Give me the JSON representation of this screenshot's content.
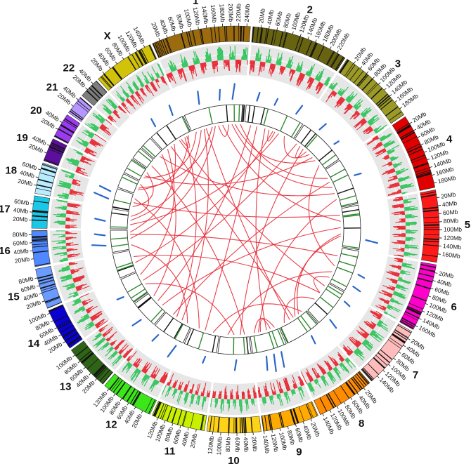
{
  "colors": {
    "ideogram": {
      "1": "#9b6b0e",
      "2": "#686310",
      "3": "#9c9a26",
      "4": "#e00000",
      "5": "#ff1a1a",
      "6": "#ff00cc",
      "7": "#ffbcbc",
      "8": "#ff8c00",
      "9": "#ffaa00",
      "10": "#ffd21a",
      "11": "#c8f000",
      "12": "#3ce61a",
      "13": "#2f6418",
      "14": "#0a00d0",
      "15": "#6a9bff",
      "16": "#4f88ff",
      "17": "#18c8e6",
      "18": "#b8ecff",
      "19": "#5c0f9c",
      "20": "#9a3bf0",
      "21": "#b696ff",
      "22": "#7d7d7d",
      "X": "#d2c20a"
    },
    "gain_track": "#2fc45a",
    "loss_track": "#e8242f",
    "track_background": "#e6e6e6",
    "lines_track": "#2a67c9",
    "heat_mark": "#2e8a2e",
    "links": "#e62a36"
  },
  "chromosomes": [
    {
      "label": "1",
      "size_mb": 249,
      "ticks": [
        "20Mb",
        "40Mb",
        "60Mb",
        "80Mb",
        "100Mb",
        "120Mb",
        "140Mb",
        "160Mb",
        "180Mb",
        "200Mb",
        "220Mb",
        "240Mb"
      ]
    },
    {
      "label": "2",
      "size_mb": 243,
      "ticks": [
        "20Mb",
        "40Mb",
        "60Mb",
        "80Mb",
        "100Mb",
        "120Mb",
        "140Mb",
        "160Mb",
        "180Mb",
        "200Mb",
        "220Mb"
      ]
    },
    {
      "label": "3",
      "size_mb": 198,
      "ticks": [
        "20Mb",
        "40Mb",
        "60Mb",
        "80Mb",
        "100Mb",
        "120Mb",
        "140Mb",
        "160Mb",
        "180Mb"
      ]
    },
    {
      "label": "4",
      "size_mb": 191,
      "ticks": [
        "20Mb",
        "40Mb",
        "60Mb",
        "80Mb",
        "100Mb",
        "120Mb",
        "140Mb",
        "160Mb",
        "180Mb"
      ]
    },
    {
      "label": "5",
      "size_mb": 181,
      "ticks": [
        "20Mb",
        "40Mb",
        "60Mb",
        "80Mb",
        "100Mb",
        "120Mb",
        "140Mb",
        "160Mb"
      ]
    },
    {
      "label": "6",
      "size_mb": 171,
      "ticks": [
        "20Mb",
        "40Mb",
        "60Mb",
        "80Mb",
        "100Mb",
        "120Mb",
        "140Mb",
        "160Mb"
      ]
    },
    {
      "label": "7",
      "size_mb": 159,
      "ticks": [
        "20Mb",
        "40Mb",
        "60Mb",
        "80Mb",
        "100Mb",
        "120Mb",
        "140Mb"
      ]
    },
    {
      "label": "8",
      "size_mb": 146,
      "ticks": [
        "20Mb",
        "40Mb",
        "60Mb",
        "80Mb",
        "100Mb",
        "120Mb",
        "140Mb"
      ]
    },
    {
      "label": "9",
      "size_mb": 141,
      "ticks": [
        "20Mb",
        "40Mb",
        "60Mb",
        "80Mb",
        "100Mb",
        "120Mb",
        "140Mb"
      ]
    },
    {
      "label": "10",
      "size_mb": 135,
      "ticks": [
        "20Mb",
        "40Mb",
        "60Mb",
        "80Mb",
        "100Mb",
        "120Mb"
      ]
    },
    {
      "label": "11",
      "size_mb": 135,
      "ticks": [
        "20Mb",
        "40Mb",
        "60Mb",
        "80Mb",
        "100Mb",
        "120Mb"
      ]
    },
    {
      "label": "12",
      "size_mb": 133,
      "ticks": [
        "20Mb",
        "40Mb",
        "60Mb",
        "80Mb",
        "100Mb",
        "120Mb"
      ]
    },
    {
      "label": "13",
      "size_mb": 115,
      "ticks": [
        "20Mb",
        "40Mb",
        "60Mb",
        "80Mb",
        "100Mb"
      ]
    },
    {
      "label": "14",
      "size_mb": 107,
      "ticks": [
        "20Mb",
        "40Mb",
        "60Mb",
        "80Mb",
        "100Mb"
      ]
    },
    {
      "label": "15",
      "size_mb": 102,
      "ticks": [
        "20Mb",
        "40Mb",
        "60Mb",
        "80Mb"
      ]
    },
    {
      "label": "16",
      "size_mb": 90,
      "ticks": [
        "20Mb",
        "40Mb",
        "60Mb",
        "80Mb"
      ]
    },
    {
      "label": "17",
      "size_mb": 81,
      "ticks": [
        "20Mb",
        "40Mb",
        "60Mb"
      ]
    },
    {
      "label": "18",
      "size_mb": 78,
      "ticks": [
        "20Mb",
        "40Mb",
        "60Mb"
      ]
    },
    {
      "label": "19",
      "size_mb": 59,
      "ticks": [
        "20Mb",
        "40Mb"
      ]
    },
    {
      "label": "20",
      "size_mb": 63,
      "ticks": [
        "20Mb",
        "40Mb"
      ]
    },
    {
      "label": "21",
      "size_mb": 48,
      "ticks": [
        "20Mb",
        "40Mb"
      ]
    },
    {
      "label": "22",
      "size_mb": 51,
      "ticks": [
        "20Mb",
        "40Mb"
      ]
    },
    {
      "label": "X",
      "size_mb": 155,
      "ticks": [
        "20Mb",
        "40Mb",
        "60Mb",
        "80Mb",
        "100Mb",
        "120Mb",
        "140Mb"
      ]
    }
  ],
  "links": [
    [
      "1",
      45,
      "17",
      40
    ],
    [
      "1",
      60,
      "12",
      50
    ],
    [
      "1",
      70,
      "8",
      90
    ],
    [
      "1",
      100,
      "19",
      30
    ],
    [
      "1",
      115,
      "16",
      50
    ],
    [
      "1",
      150,
      "5",
      60
    ],
    [
      "1",
      195,
      "4",
      90
    ],
    [
      "1",
      210,
      "3",
      140
    ],
    [
      "1",
      235,
      "4",
      40
    ],
    [
      "2",
      30,
      "13",
      60
    ],
    [
      "2",
      60,
      "11",
      70
    ],
    [
      "2",
      100,
      "9",
      60
    ],
    [
      "2",
      140,
      "15",
      40
    ],
    [
      "2",
      170,
      "17",
      20
    ],
    [
      "2",
      200,
      "3",
      100
    ],
    [
      "3",
      20,
      "14",
      60
    ],
    [
      "3",
      60,
      "10",
      40
    ],
    [
      "3",
      120,
      "20",
      30
    ],
    [
      "3",
      170,
      "6",
      90
    ],
    [
      "4",
      60,
      "12",
      100
    ],
    [
      "4",
      120,
      "22",
      25
    ],
    [
      "4",
      150,
      "9",
      100
    ],
    [
      "5",
      30,
      "18",
      40
    ],
    [
      "5",
      90,
      "13",
      30
    ],
    [
      "5",
      120,
      "8",
      40
    ],
    [
      "5",
      130,
      "8",
      60
    ],
    [
      "6",
      40,
      "16",
      70
    ],
    [
      "6",
      120,
      "10",
      100
    ],
    [
      "6",
      150,
      "7",
      60
    ],
    [
      "7",
      20,
      "X",
      90
    ],
    [
      "7",
      60,
      "15",
      70
    ],
    [
      "7",
      100,
      "8",
      120
    ],
    [
      "8",
      20,
      "11",
      30
    ],
    [
      "8",
      70,
      "X",
      40
    ],
    [
      "9",
      20,
      "9",
      120
    ],
    [
      "9",
      40,
      "9",
      90
    ],
    [
      "10",
      20,
      "21",
      20
    ],
    [
      "10",
      70,
      "14",
      40
    ],
    [
      "11",
      100,
      "18",
      60
    ],
    [
      "12",
      20,
      "16",
      20
    ],
    [
      "12",
      80,
      "X",
      120
    ],
    [
      "13",
      90,
      "22",
      40
    ],
    [
      "14",
      90,
      "X",
      20
    ],
    [
      "16",
      80,
      "X",
      60
    ],
    [
      "17",
      60,
      "19",
      50
    ],
    [
      "18",
      20,
      "20",
      50
    ],
    [
      "19",
      20,
      "X",
      140
    ],
    [
      "20",
      20,
      "1",
      20
    ],
    [
      "1",
      130,
      "1",
      180
    ],
    [
      "X",
      100,
      "X",
      130
    ],
    [
      "2",
      120,
      "2",
      150
    ],
    [
      "3",
      40,
      "3",
      80
    ]
  ],
  "line_track": [
    [
      "1",
      70,
      0.75
    ],
    [
      "1",
      150,
      0.6
    ],
    [
      "1",
      200,
      0.9
    ],
    [
      "2",
      40,
      0.5
    ],
    [
      "2",
      110,
      0.4
    ],
    [
      "2",
      200,
      0.6
    ],
    [
      "3",
      60,
      0.5
    ],
    [
      "3",
      140,
      0.3
    ],
    [
      "4",
      80,
      0.4
    ],
    [
      "5",
      140,
      0.7
    ],
    [
      "6",
      90,
      0.4
    ],
    [
      "6",
      140,
      0.5
    ],
    [
      "7",
      30,
      0.4
    ],
    [
      "7",
      120,
      0.6
    ],
    [
      "8",
      50,
      0.5
    ],
    [
      "9",
      30,
      0.9
    ],
    [
      "9",
      60,
      1.0
    ],
    [
      "9",
      90,
      0.8
    ],
    [
      "10",
      60,
      0.6
    ],
    [
      "11",
      40,
      0.4
    ],
    [
      "12",
      20,
      0.8
    ],
    [
      "12",
      100,
      0.5
    ],
    [
      "13",
      50,
      0.6
    ],
    [
      "14",
      40,
      0.4
    ],
    [
      "16",
      30,
      0.8
    ],
    [
      "16",
      70,
      0.6
    ],
    [
      "17",
      30,
      0.6
    ],
    [
      "18",
      30,
      0.9
    ],
    [
      "18",
      60,
      0.7
    ],
    [
      "X",
      40,
      0.5
    ],
    [
      "X",
      120,
      0.6
    ]
  ]
}
